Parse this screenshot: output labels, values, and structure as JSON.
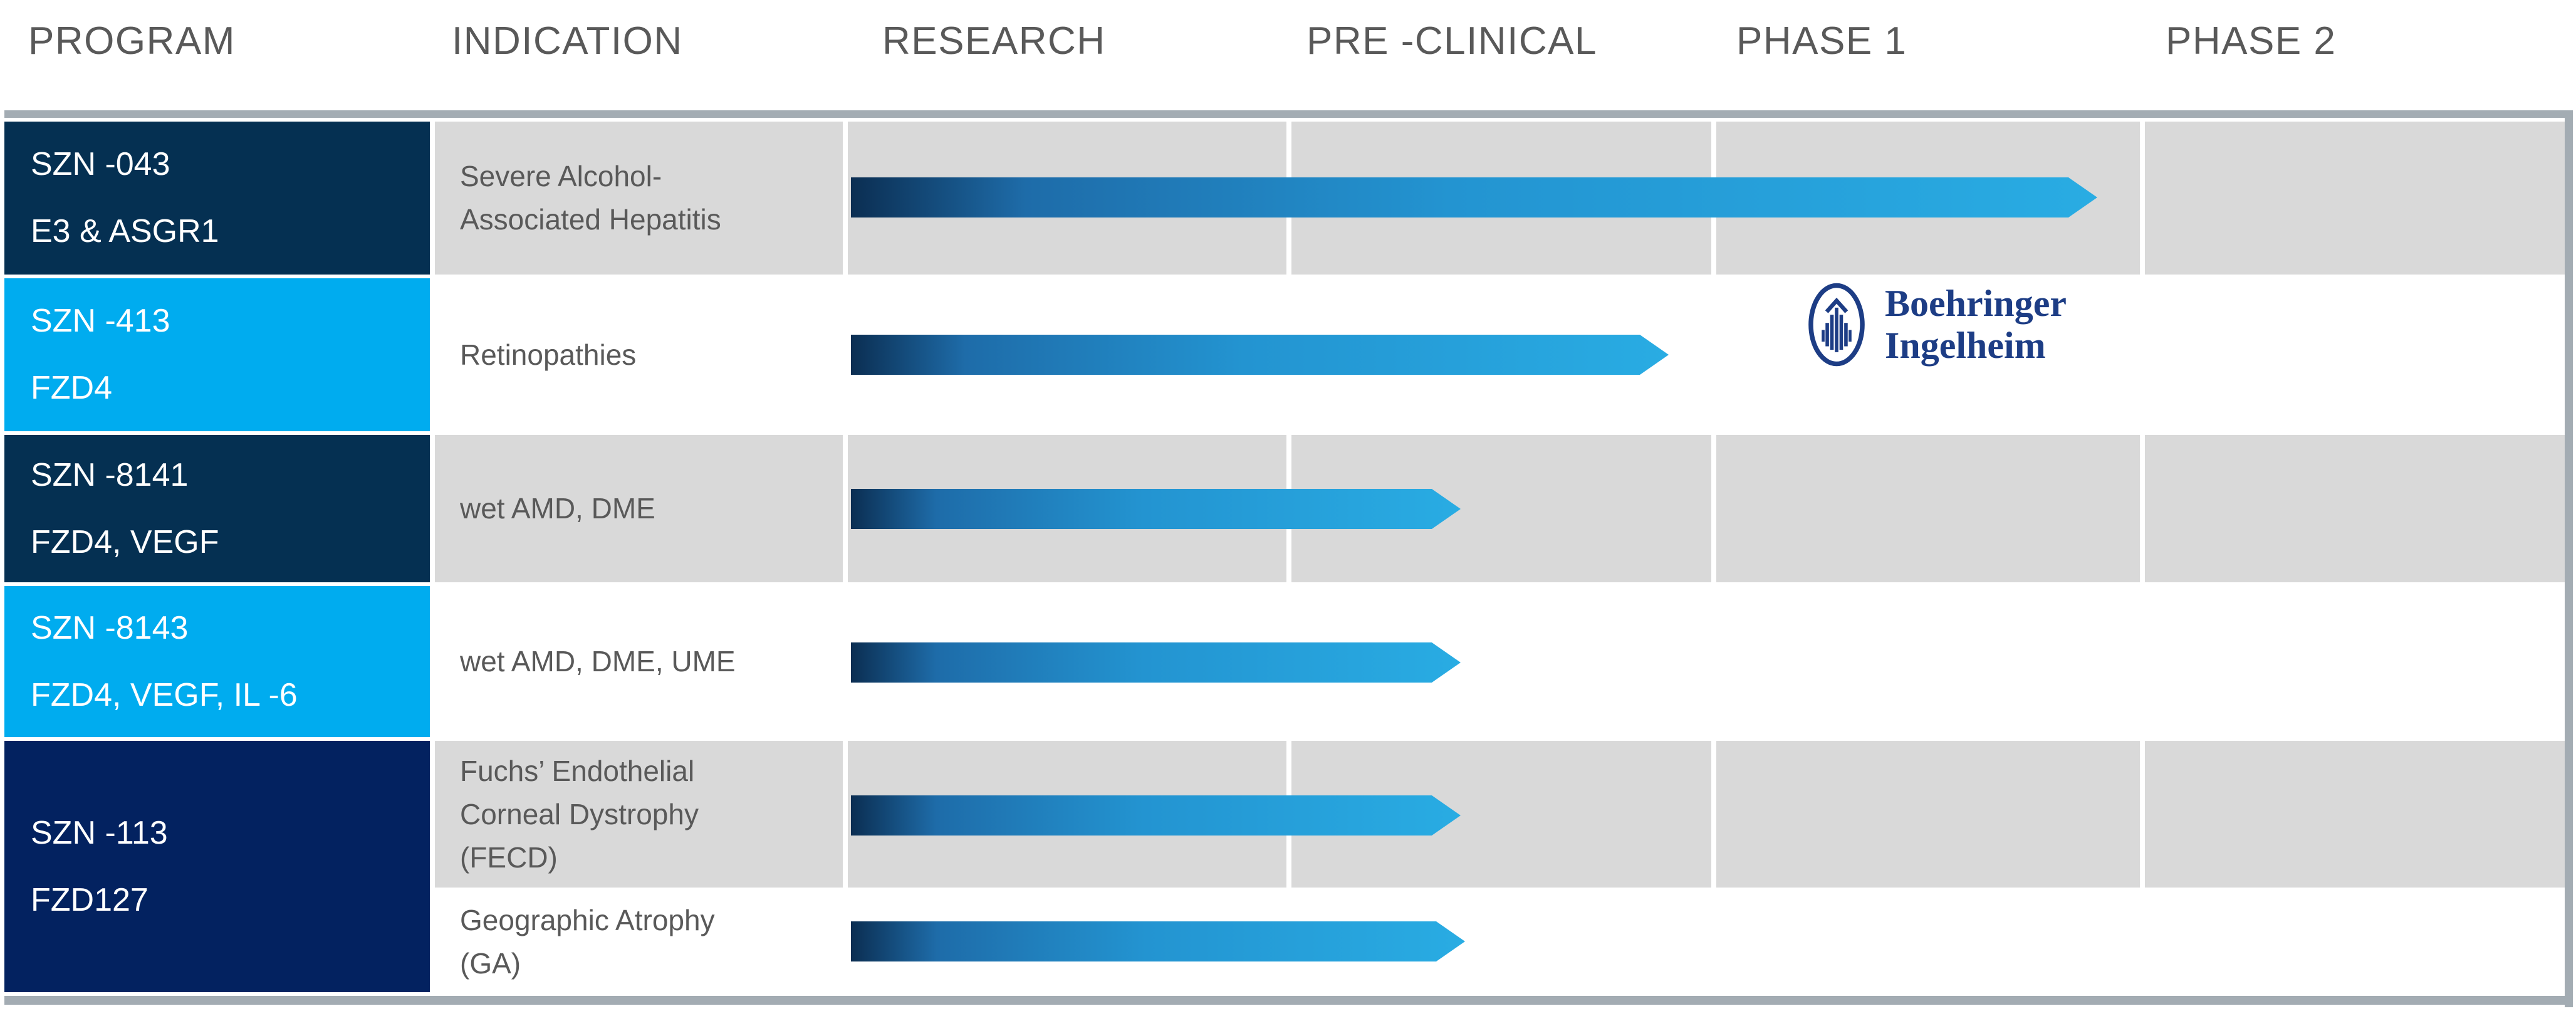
{
  "colors": {
    "background": "#FFFFFF",
    "bar": "#A3ACB3",
    "cell_gray": "#D9D9D9",
    "navy": "#053052",
    "navy_alt": "#032260",
    "bright_blue": "#00ACEF",
    "header_text": "#595959",
    "body_text": "#595959",
    "program_text": "#FFFFFF",
    "bi_blue": "#1D3D85",
    "arrow_gradient": [
      "#0B2E52",
      "#1E6CA9",
      "#2394D1",
      "#29ACE3"
    ]
  },
  "headers": {
    "program": "PROGRAM",
    "indication": "INDICATION",
    "research": "RESEARCH",
    "preclinical": "PRE -CLINICAL",
    "phase1": "PHASE 1",
    "phase2": "PHASE 2"
  },
  "programs": [
    {
      "code": "SZN -043",
      "target": "E3 & ASGR1"
    },
    {
      "code": "SZN -413",
      "target": "FZD4"
    },
    {
      "code": "SZN -8141",
      "target": "FZD4, VEGF"
    },
    {
      "code": "SZN -8143",
      "target": "FZD4, VEGF, IL -6"
    },
    {
      "code": "SZN -113",
      "target": "FZD127"
    }
  ],
  "indications": [
    {
      "lines": [
        "Severe Alcohol-",
        "Associated Hepatitis"
      ]
    },
    {
      "lines": [
        "Retinopathies"
      ]
    },
    {
      "lines": [
        "wet AMD, DME"
      ]
    },
    {
      "lines": [
        "wet AMD, DME, UME"
      ]
    },
    {
      "lines": [
        "Fuchs’ Endothelial",
        "Corneal Dystrophy",
        "(FECD)"
      ]
    },
    {
      "lines": [
        "Geographic Atrophy",
        "(GA)"
      ]
    }
  ],
  "partner": {
    "name": "Boehringer Ingelheim",
    "line1": "Boehringer",
    "line2": "Ingelheim"
  },
  "chart_data": {
    "type": "gantt",
    "title": "Clinical pipeline by development stage",
    "stages": [
      "RESEARCH",
      "PRE -CLINICAL",
      "PHASE 1",
      "PHASE 2"
    ],
    "legend_position": "none",
    "grid": true,
    "rows": [
      {
        "program": "SZN -043",
        "target": "E3 & ASGR1",
        "indication": "Severe Alcohol-Associated Hepatitis",
        "progress_stages": 2.89,
        "partner": ""
      },
      {
        "program": "SZN -413",
        "target": "FZD4",
        "indication": "Retinopathies",
        "progress_stages": 1.89,
        "partner": "Boehringer Ingelheim"
      },
      {
        "program": "SZN -8141",
        "target": "FZD4, VEGF",
        "indication": "wet AMD, DME",
        "progress_stages": 1.4,
        "partner": ""
      },
      {
        "program": "SZN -8143",
        "target": "FZD4, VEGF, IL -6",
        "indication": "wet AMD, DME, UME",
        "progress_stages": 1.4,
        "partner": ""
      },
      {
        "program": "SZN -113",
        "target": "FZD127",
        "indication": "Fuchs’ Endothelial Corneal Dystrophy (FECD)",
        "progress_stages": 1.4,
        "partner": ""
      },
      {
        "program": "SZN -113",
        "target": "FZD127",
        "indication": "Geographic Atrophy (GA)",
        "progress_stages": 1.41,
        "partner": ""
      }
    ]
  }
}
